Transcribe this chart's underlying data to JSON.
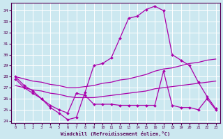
{
  "xlabel": "Windchill (Refroidissement éolien,°C)",
  "background_color": "#cce8f0",
  "line_color": "#aa00aa",
  "grid_color": "#ffffff",
  "xlim": [
    -0.5,
    23.5
  ],
  "ylim": [
    23.8,
    34.7
  ],
  "yticks": [
    24,
    25,
    26,
    27,
    28,
    29,
    30,
    31,
    32,
    33,
    34
  ],
  "xticks": [
    0,
    1,
    2,
    3,
    4,
    5,
    6,
    7,
    8,
    9,
    10,
    11,
    12,
    13,
    14,
    15,
    16,
    17,
    18,
    19,
    20,
    21,
    22,
    23
  ],
  "series": [
    {
      "x": [
        0,
        1,
        2,
        3,
        4,
        5,
        6,
        7,
        8,
        9,
        10,
        11,
        12,
        13,
        14,
        15,
        16,
        17,
        18,
        19,
        20,
        21,
        22,
        23
      ],
      "y": [
        28.0,
        27.2,
        26.7,
        26.0,
        25.2,
        24.7,
        24.1,
        24.3,
        26.6,
        29.0,
        29.2,
        29.7,
        31.5,
        33.3,
        33.5,
        34.1,
        34.4,
        34.0,
        30.0,
        29.5,
        29.0,
        27.5,
        26.2,
        25.1
      ],
      "has_marker": true
    },
    {
      "x": [
        0,
        1,
        2,
        3,
        4,
        5,
        6,
        7,
        8,
        9,
        10,
        11,
        12,
        13,
        14,
        15,
        16,
        17,
        18,
        19,
        20,
        21,
        22,
        23
      ],
      "y": [
        28.0,
        27.8,
        27.6,
        27.5,
        27.3,
        27.2,
        27.0,
        27.0,
        27.1,
        27.2,
        27.4,
        27.5,
        27.7,
        27.8,
        28.0,
        28.2,
        28.5,
        28.7,
        28.8,
        29.0,
        29.2,
        29.3,
        29.5,
        29.6
      ],
      "has_marker": false
    },
    {
      "x": [
        0,
        1,
        2,
        3,
        4,
        5,
        6,
        7,
        8,
        9,
        10,
        11,
        12,
        13,
        14,
        15,
        16,
        17,
        18,
        19,
        20,
        21,
        22,
        23
      ],
      "y": [
        27.2,
        27.0,
        26.8,
        26.7,
        26.5,
        26.4,
        26.2,
        26.1,
        26.1,
        26.1,
        26.2,
        26.3,
        26.4,
        26.5,
        26.6,
        26.7,
        26.9,
        27.0,
        27.1,
        27.2,
        27.3,
        27.4,
        27.5,
        27.6
      ],
      "has_marker": false
    },
    {
      "x": [
        0,
        1,
        2,
        3,
        4,
        5,
        6,
        7,
        8,
        9,
        10,
        11,
        12,
        13,
        14,
        15,
        16,
        17,
        18,
        19,
        20,
        21,
        22,
        23
      ],
      "y": [
        27.8,
        27.0,
        26.5,
        26.0,
        25.4,
        25.0,
        24.7,
        26.5,
        26.3,
        25.5,
        25.5,
        25.5,
        25.4,
        25.4,
        25.4,
        25.4,
        25.4,
        28.5,
        25.4,
        25.2,
        25.2,
        25.0,
        26.0,
        25.0
      ],
      "has_marker": true
    }
  ]
}
